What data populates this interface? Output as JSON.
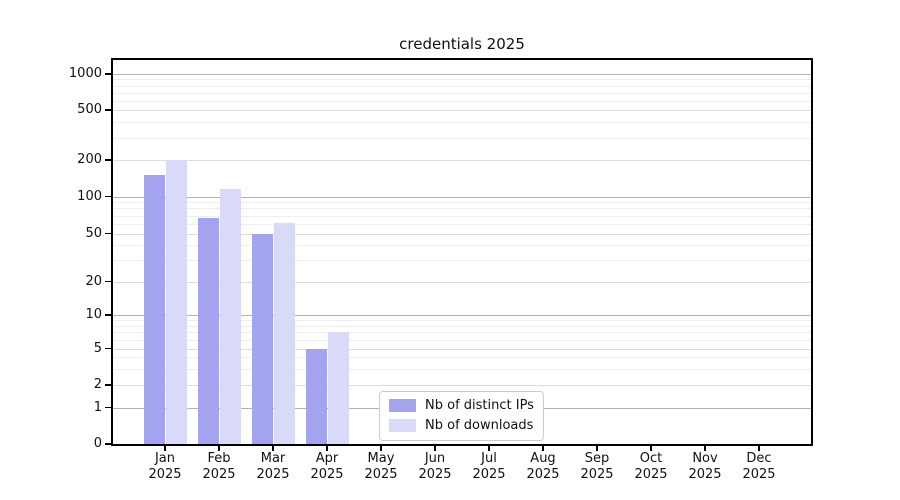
{
  "title": "credentials 2025",
  "chart_data": {
    "type": "bar",
    "title": "credentials 2025",
    "categories": [
      "Jan 2025",
      "Feb 2025",
      "Mar 2025",
      "Apr 2025",
      "May 2025",
      "Jun 2025",
      "Jul 2025",
      "Aug 2025",
      "Sep 2025",
      "Oct 2025",
      "Nov 2025",
      "Dec 2025"
    ],
    "series": [
      {
        "name": "Nb of distinct IPs",
        "color": "#a3a3ef",
        "values": [
          150,
          67,
          50,
          5,
          0,
          0,
          0,
          0,
          0,
          0,
          0,
          0
        ]
      },
      {
        "name": "Nb of downloads",
        "color": "#d9d9f8",
        "values": [
          200,
          115,
          61,
          7,
          0,
          0,
          0,
          0,
          0,
          0,
          0,
          0
        ]
      }
    ],
    "xlabel": "",
    "ylabel": "",
    "yscale": "symlog",
    "yticks": [
      0,
      1,
      2,
      5,
      10,
      20,
      50,
      100,
      200,
      500,
      1000
    ],
    "ylim": [
      0,
      1300
    ],
    "grid": "on",
    "legend_position": "lower center",
    "colors": {
      "major_gridline": "#b2b2b2",
      "mid_gridline": "#dcdcdc",
      "minor_gridline": "#eeeeee",
      "axis": "#000000"
    }
  }
}
